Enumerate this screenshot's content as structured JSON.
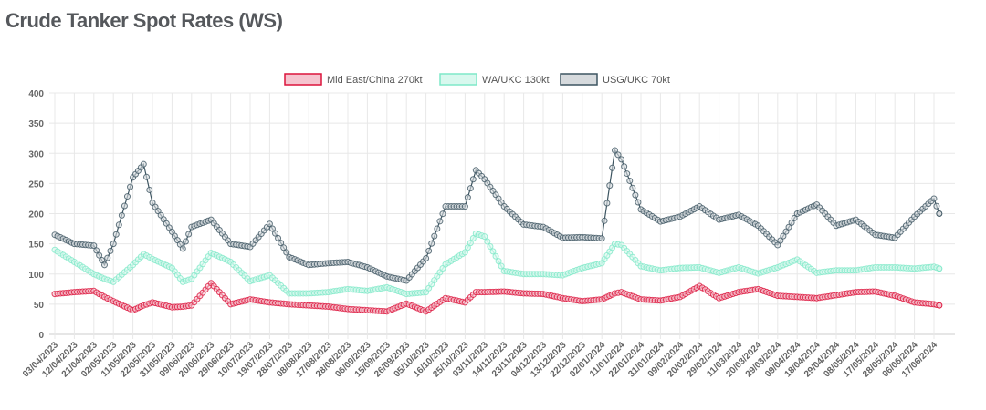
{
  "chart_data": {
    "type": "line",
    "title": "Crude Tanker Spot Rates (WS)",
    "xlabel": "",
    "ylabel": "",
    "ylim": [
      0,
      400
    ],
    "yticks": [
      0,
      50,
      100,
      150,
      200,
      250,
      300,
      350,
      400
    ],
    "grid": true,
    "legend_position": "top",
    "xticks": [
      "03/04/2023",
      "12/04/2023",
      "21/04/2023",
      "02/05/2023",
      "11/05/2023",
      "22/05/2023",
      "31/05/2023",
      "09/06/2023",
      "20/06/2023",
      "29/06/2023",
      "10/07/2023",
      "19/07/2023",
      "28/07/2023",
      "08/08/2023",
      "17/08/2023",
      "28/08/2023",
      "06/09/2023",
      "15/09/2023",
      "26/09/2023",
      "05/10/2023",
      "16/10/2023",
      "25/10/2023",
      "03/11/2023",
      "14/11/2023",
      "23/11/2023",
      "04/12/2023",
      "13/12/2023",
      "22/12/2023",
      "02/01/2024",
      "11/01/2024",
      "22/01/2024",
      "31/01/2024",
      "09/02/2024",
      "20/02/2024",
      "29/02/2024",
      "11/03/2024",
      "20/03/2024",
      "29/03/2024",
      "09/04/2024",
      "18/04/2024",
      "29/04/2024",
      "08/05/2024",
      "17/05/2024",
      "28/05/2024",
      "06/06/2024",
      "17/06/2024"
    ],
    "x": [
      "03/04/2023",
      "12/04/2023",
      "21/04/2023",
      "27/04/2023",
      "02/05/2023",
      "11/05/2023",
      "17/05/2023",
      "22/05/2023",
      "31/05/2023",
      "05/06/2023",
      "09/06/2023",
      "20/06/2023",
      "29/06/2023",
      "10/07/2023",
      "19/07/2023",
      "28/07/2023",
      "08/08/2023",
      "17/08/2023",
      "28/08/2023",
      "06/09/2023",
      "15/09/2023",
      "26/09/2023",
      "05/10/2023",
      "16/10/2023",
      "25/10/2023",
      "30/10/2023",
      "03/11/2023",
      "14/11/2023",
      "23/11/2023",
      "04/12/2023",
      "13/12/2023",
      "22/12/2023",
      "02/01/2024",
      "08/01/2024",
      "11/01/2024",
      "22/01/2024",
      "31/01/2024",
      "09/02/2024",
      "20/02/2024",
      "29/02/2024",
      "11/03/2024",
      "20/03/2024",
      "29/03/2024",
      "09/04/2024",
      "18/04/2024",
      "29/04/2024",
      "08/05/2024",
      "17/05/2024",
      "28/05/2024",
      "06/06/2024",
      "17/06/2024",
      "20/06/2024"
    ],
    "series": [
      {
        "name": "Mid East/China 270kt",
        "color": "#dc143c",
        "fill": "#f5c4cf",
        "values": [
          67,
          70,
          72,
          62,
          55,
          40,
          48,
          53,
          45,
          46,
          48,
          85,
          50,
          58,
          53,
          50,
          48,
          46,
          42,
          40,
          38,
          51,
          38,
          60,
          53,
          70,
          70,
          71,
          68,
          67,
          60,
          55,
          58,
          68,
          70,
          58,
          56,
          62,
          80,
          60,
          70,
          75,
          64,
          62,
          60,
          65,
          70,
          71,
          64,
          53,
          50,
          48
        ]
      },
      {
        "name": "WA/UKC 130kt",
        "color": "#7fe8c8",
        "fill": "#d8f8ee",
        "values": [
          140,
          120,
          100,
          92,
          87,
          115,
          133,
          125,
          110,
          87,
          92,
          135,
          120,
          88,
          98,
          68,
          68,
          70,
          75,
          72,
          78,
          67,
          70,
          116,
          136,
          167,
          162,
          105,
          100,
          100,
          98,
          110,
          118,
          150,
          148,
          113,
          106,
          110,
          111,
          102,
          111,
          101,
          111,
          124,
          102,
          106,
          106,
          111,
          111,
          109,
          112,
          109
        ]
      },
      {
        "name": "USG/UKC 70kt",
        "color": "#3d5561",
        "fill": "#d6dadd",
        "values": [
          165,
          150,
          147,
          115,
          150,
          260,
          282,
          218,
          170,
          142,
          178,
          190,
          150,
          145,
          183,
          128,
          115,
          118,
          120,
          111,
          96,
          89,
          126,
          212,
          212,
          272,
          257,
          212,
          182,
          178,
          160,
          161,
          159,
          305,
          290,
          207,
          187,
          195,
          212,
          190,
          198,
          180,
          148,
          200,
          215,
          180,
          190,
          165,
          160,
          195,
          225,
          200
        ]
      }
    ]
  }
}
